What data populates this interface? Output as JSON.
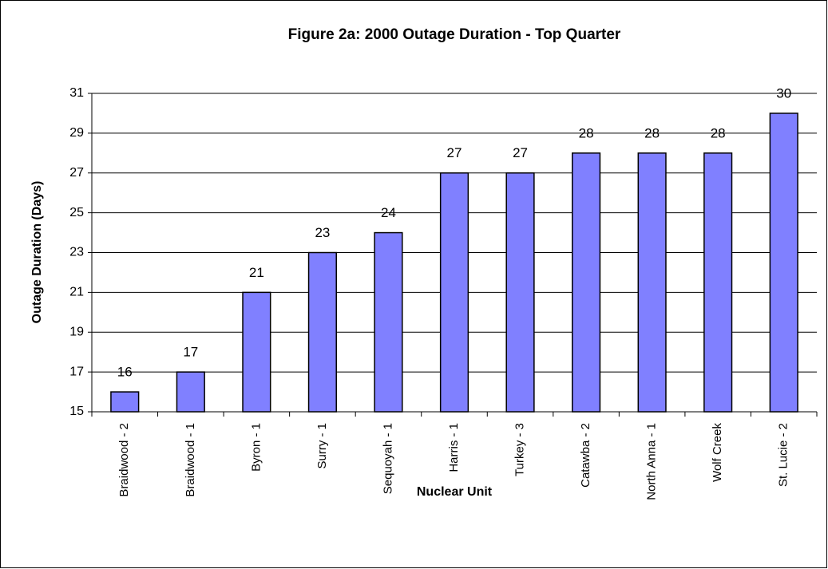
{
  "chart_data": {
    "type": "bar",
    "title": "Figure 2a: 2000 Outage Duration - Top Quarter",
    "xlabel": "Nuclear Unit",
    "ylabel": "Outage Duration (Days)",
    "categories": [
      "Braidwood - 2",
      "Braidwood - 1",
      "Byron - 1",
      "Surry - 1",
      "Sequoyah - 1",
      "Harris - 1",
      "Turkey - 3",
      "Catawba - 2",
      "North Anna - 1",
      "Wolf Creek",
      "St. Lucie - 2"
    ],
    "values": [
      16,
      17,
      21,
      23,
      24,
      27,
      27,
      28,
      28,
      28,
      30
    ],
    "color": "#8080ff",
    "ylim": [
      15,
      31
    ],
    "yticks": [
      15,
      17,
      19,
      21,
      23,
      25,
      27,
      29,
      31
    ],
    "grid": true
  }
}
